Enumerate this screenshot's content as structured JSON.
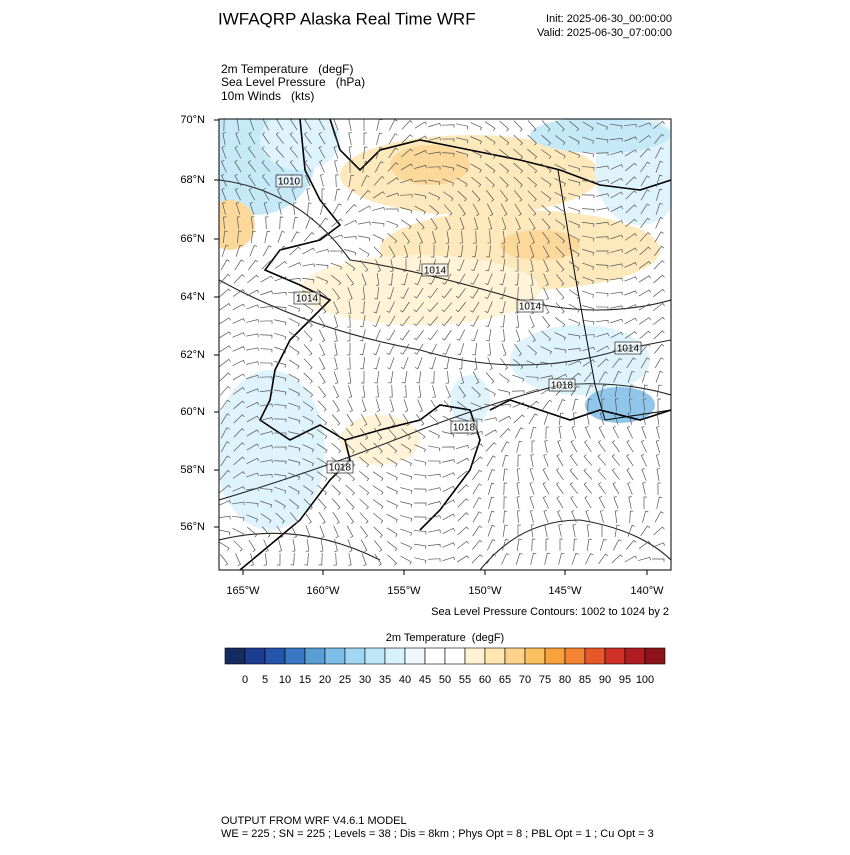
{
  "header": {
    "title": "IWFAQRP Alaska Real Time WRF",
    "init": "Init: 2025-06-30_00:00:00",
    "valid": "Valid: 2025-06-30_07:00:00"
  },
  "fields": [
    "2m Temperature   (degF)",
    "Sea Level Pressure   (hPa)",
    "10m Winds   (kts)"
  ],
  "map": {
    "lat_labels": [
      "70°N",
      "68°N",
      "66°N",
      "64°N",
      "62°N",
      "60°N",
      "58°N",
      "56°N"
    ],
    "lon_labels": [
      "165°W",
      "160°W",
      "155°W",
      "150°W",
      "145°W",
      "140°W"
    ],
    "contour_labels": [
      "1010",
      "1014",
      "1014",
      "1014",
      "1014",
      "1018",
      "1018",
      "1018"
    ],
    "caption": "Sea Level Pressure Contours: 1002 to 1024 by 2"
  },
  "colorbar": {
    "title": "2m Temperature  (degF)",
    "ticks": [
      0,
      5,
      10,
      15,
      20,
      25,
      30,
      35,
      40,
      45,
      50,
      55,
      60,
      65,
      70,
      75,
      80,
      85,
      90,
      95,
      100
    ],
    "colors": [
      "#172b63",
      "#1d3c8e",
      "#2455aa",
      "#3a76c1",
      "#5a9fd4",
      "#7dbde6",
      "#a0d6f2",
      "#bde6f7",
      "#d9f1fb",
      "#eef8fc",
      "#ffffff",
      "#ffffff",
      "#fff2d2",
      "#fde6b0",
      "#fcd38a",
      "#fbc05f",
      "#f7a23d",
      "#f28433",
      "#e5582c",
      "#cf3027",
      "#b01e24",
      "#8c1419"
    ]
  },
  "footer": [
    "OUTPUT FROM WRF V4.6.1 MODEL",
    "WE = 225 ; SN = 225 ; Levels = 38 ; Dis = 8km ; Phys Opt = 8 ; PBL Opt = 1 ; Cu Opt = 3"
  ]
}
